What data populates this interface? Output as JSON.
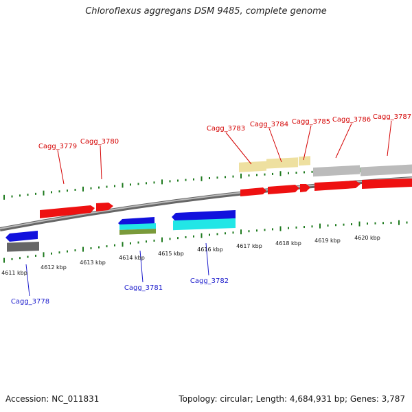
{
  "title": "Chloroflexus aggregans DSM 9485, complete genome",
  "footer": {
    "accession": "Accession: NC_011831",
    "summary": "Topology: circular; Length: 4,684,931 bp; Genes: 3,787"
  },
  "scale_labels": [
    "4611 kbp",
    "4612 kbp",
    "4613 kbp",
    "4614 kbp",
    "4615 kbp",
    "4616 kbp",
    "4617 kbp",
    "4618 kbp",
    "4619 kbp",
    "4620 kbp"
  ],
  "top_gene_labels": [
    "Cagg_3779",
    "Cagg_3780",
    "Cagg_3783",
    "Cagg_3784",
    "Cagg_3785",
    "Cagg_3786",
    "Cagg_3787"
  ],
  "bottom_gene_labels": [
    "Cagg_3778",
    "Cagg_3781",
    "Cagg_3782"
  ],
  "colors": {
    "forward_gene": "#ee1111",
    "reverse_gene": "#1111dd",
    "top_label": "#d40000",
    "bottom_label": "#1a1acc",
    "tick": "#1e7a1e",
    "backbone": "#888888",
    "cyan_feature": "#22e6e6",
    "olive_feature": "#7a9a3a",
    "yellow_feature": "#eee0a0",
    "grey_feature": "#bbbbbb"
  }
}
